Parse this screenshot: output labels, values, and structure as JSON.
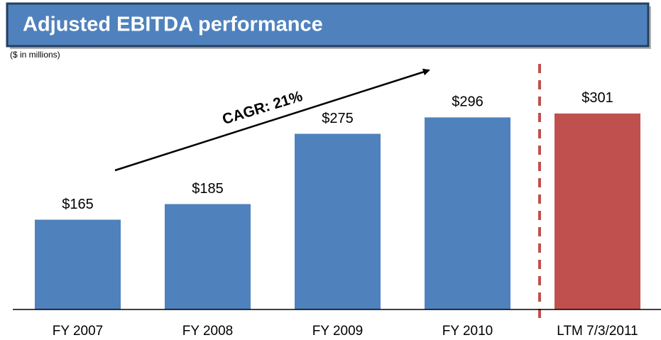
{
  "chart_data": {
    "type": "bar",
    "title": "Adjusted EBITDA performance",
    "subtitle": "($ in millions)",
    "annotation": "CAGR: 21%",
    "categories": [
      "FY 2007",
      "FY 2008",
      "FY 2009",
      "FY 2010",
      "LTM 7/3/2011"
    ],
    "values": [
      165,
      185,
      275,
      296,
      301
    ],
    "value_labels": [
      "$165",
      "$185",
      "$275",
      "$296",
      "$301"
    ],
    "colors": [
      "#4f81bd",
      "#4f81bd",
      "#4f81bd",
      "#4f81bd",
      "#c0504d"
    ],
    "ylim": [
      50,
      350
    ]
  }
}
